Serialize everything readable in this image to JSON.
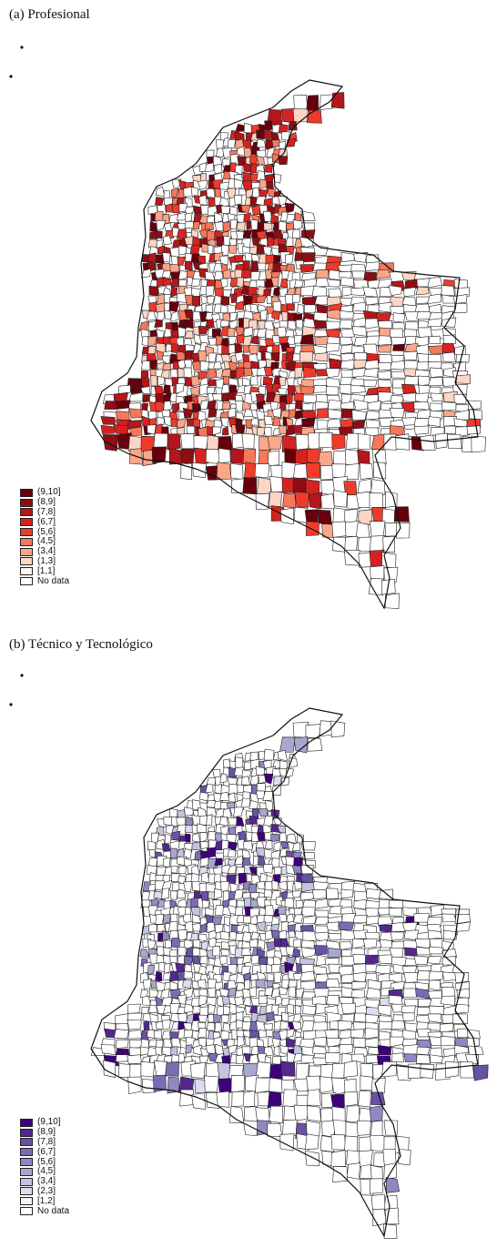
{
  "panels": [
    {
      "title": "(a) Profesional",
      "legend": [
        {
          "label": "(9,10]",
          "color": "#67000d"
        },
        {
          "label": "(8,9]",
          "color": "#8e0d14"
        },
        {
          "label": "(7,8]",
          "color": "#b3161b"
        },
        {
          "label": "(6,7]",
          "color": "#d52221"
        },
        {
          "label": "(5,6]",
          "color": "#ef3b2c"
        },
        {
          "label": "(4,5]",
          "color": "#f7775a"
        },
        {
          "label": "(3,4]",
          "color": "#fca689"
        },
        {
          "label": "(1,3]",
          "color": "#fdd5c4"
        },
        {
          "label": "[1,1]",
          "color": "#fff5f0"
        },
        {
          "label": "No data",
          "color": "#ffffff"
        }
      ]
    },
    {
      "title": "(b) Técnico y Tecnológico",
      "legend": [
        {
          "label": "(9,10]",
          "color": "#3f007d"
        },
        {
          "label": "(8,9]",
          "color": "#54278f"
        },
        {
          "label": "(7,8]",
          "color": "#6a51a3"
        },
        {
          "label": "(6,7]",
          "color": "#7b6bb4"
        },
        {
          "label": "(5,6]",
          "color": "#8f88c2"
        },
        {
          "label": "(4,5]",
          "color": "#a9a6d0"
        },
        {
          "label": "(3,4]",
          "color": "#c5c3e0"
        },
        {
          "label": "(2,3]",
          "color": "#dedcee"
        },
        {
          "label": "[1,2]",
          "color": "#f4f3f9"
        },
        {
          "label": "No data",
          "color": "#ffffff"
        }
      ]
    }
  ]
}
